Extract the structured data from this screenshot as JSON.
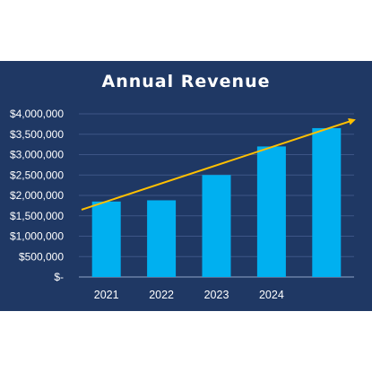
{
  "chart_data": {
    "type": "bar",
    "title": "Annual Revenue",
    "categories": [
      "2021",
      "2022",
      "2023",
      "2024",
      ""
    ],
    "values": [
      1850000,
      1880000,
      2500000,
      3200000,
      3650000
    ],
    "ylim": [
      0,
      4000000
    ],
    "yticks": [
      0,
      500000,
      1000000,
      1500000,
      2000000,
      2500000,
      3000000,
      3500000,
      4000000
    ],
    "ytick_labels": [
      "$-",
      "$500,000",
      "$1,000,000",
      "$1,500,000",
      "$2,000,000",
      "$2,500,000",
      "$3,000,000",
      "$3,500,000",
      "$4,000,000"
    ],
    "trend_arrow": {
      "from_value": 1650000,
      "to_value": 3850000
    },
    "grid": true,
    "legend": "none",
    "colors": {
      "background": "#1f3864",
      "bar": "#00b0f0",
      "trend": "#ffc000",
      "grid": "#3d5586",
      "text": "#ffffff"
    }
  }
}
